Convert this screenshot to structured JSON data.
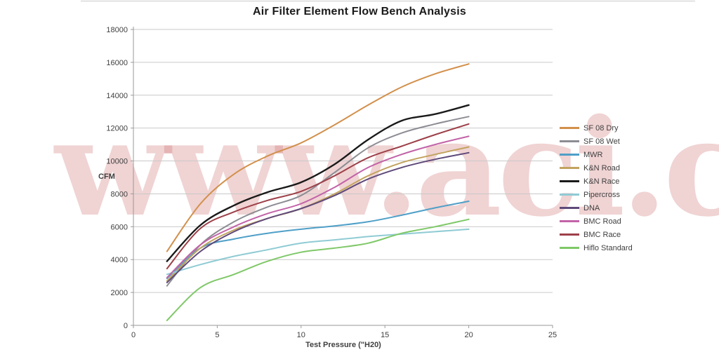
{
  "title": "Air Filter Element Flow Bench Analysis",
  "watermark": "www.aci.cz",
  "chart_data": {
    "type": "line",
    "title": "Air Filter Element Flow Bench Analysis",
    "xlabel": "Test Pressure (\"H20)",
    "ylabel": "CFM",
    "xlim": [
      0,
      25
    ],
    "ylim": [
      0,
      18000
    ],
    "x_ticks": [
      0,
      5,
      10,
      15,
      20,
      25
    ],
    "y_ticks": [
      0,
      2000,
      4000,
      6000,
      8000,
      10000,
      12000,
      14000,
      16000,
      18000
    ],
    "grid": "horizontal",
    "legend_position": "right",
    "x": [
      2,
      4,
      6,
      8,
      10,
      12,
      14,
      16,
      18,
      20
    ],
    "series": [
      {
        "name": "SF 08 Dry",
        "color": "#D2904B",
        "values": [
          4500,
          7400,
          9200,
          10300,
          11100,
          12200,
          13400,
          14500,
          15300,
          15900
        ]
      },
      {
        "name": "SF 08 Wet",
        "color": "#8C8C94",
        "values": [
          2400,
          4900,
          6300,
          7200,
          7900,
          9300,
          10800,
          11700,
          12250,
          12700
        ]
      },
      {
        "name": "MWR",
        "color": "#4F9FC8",
        "values": [
          2850,
          4700,
          5250,
          5600,
          5850,
          6050,
          6300,
          6700,
          7150,
          7550
        ]
      },
      {
        "name": "K&N Road",
        "color": "#C2A35F",
        "values": [
          2700,
          4700,
          5800,
          6500,
          7100,
          8000,
          9100,
          9900,
          10400,
          10850
        ]
      },
      {
        "name": "K&N Race",
        "color": "#1A1A1A",
        "values": [
          3900,
          6100,
          7300,
          8100,
          8700,
          9800,
          11300,
          12450,
          12850,
          13400
        ]
      },
      {
        "name": "Pipercross",
        "color": "#8FCBD4",
        "values": [
          3100,
          3700,
          4200,
          4600,
          5000,
          5200,
          5400,
          5550,
          5700,
          5850
        ]
      },
      {
        "name": "DNA",
        "color": "#5F4A7A",
        "values": [
          2600,
          4500,
          5700,
          6500,
          7100,
          7900,
          8900,
          9600,
          10100,
          10500
        ]
      },
      {
        "name": "BMC Road",
        "color": "#C263A8",
        "values": [
          2900,
          4900,
          6000,
          6800,
          7400,
          8400,
          9600,
          10400,
          11000,
          11500
        ]
      },
      {
        "name": "BMC Race",
        "color": "#9D4049",
        "values": [
          3450,
          5900,
          6900,
          7600,
          8150,
          9100,
          10200,
          10900,
          11600,
          12250
        ]
      },
      {
        "name": "Hiflo Standard",
        "color": "#7FC868",
        "values": [
          300,
          2300,
          3100,
          3900,
          4450,
          4700,
          5000,
          5600,
          6000,
          6450
        ]
      }
    ]
  }
}
